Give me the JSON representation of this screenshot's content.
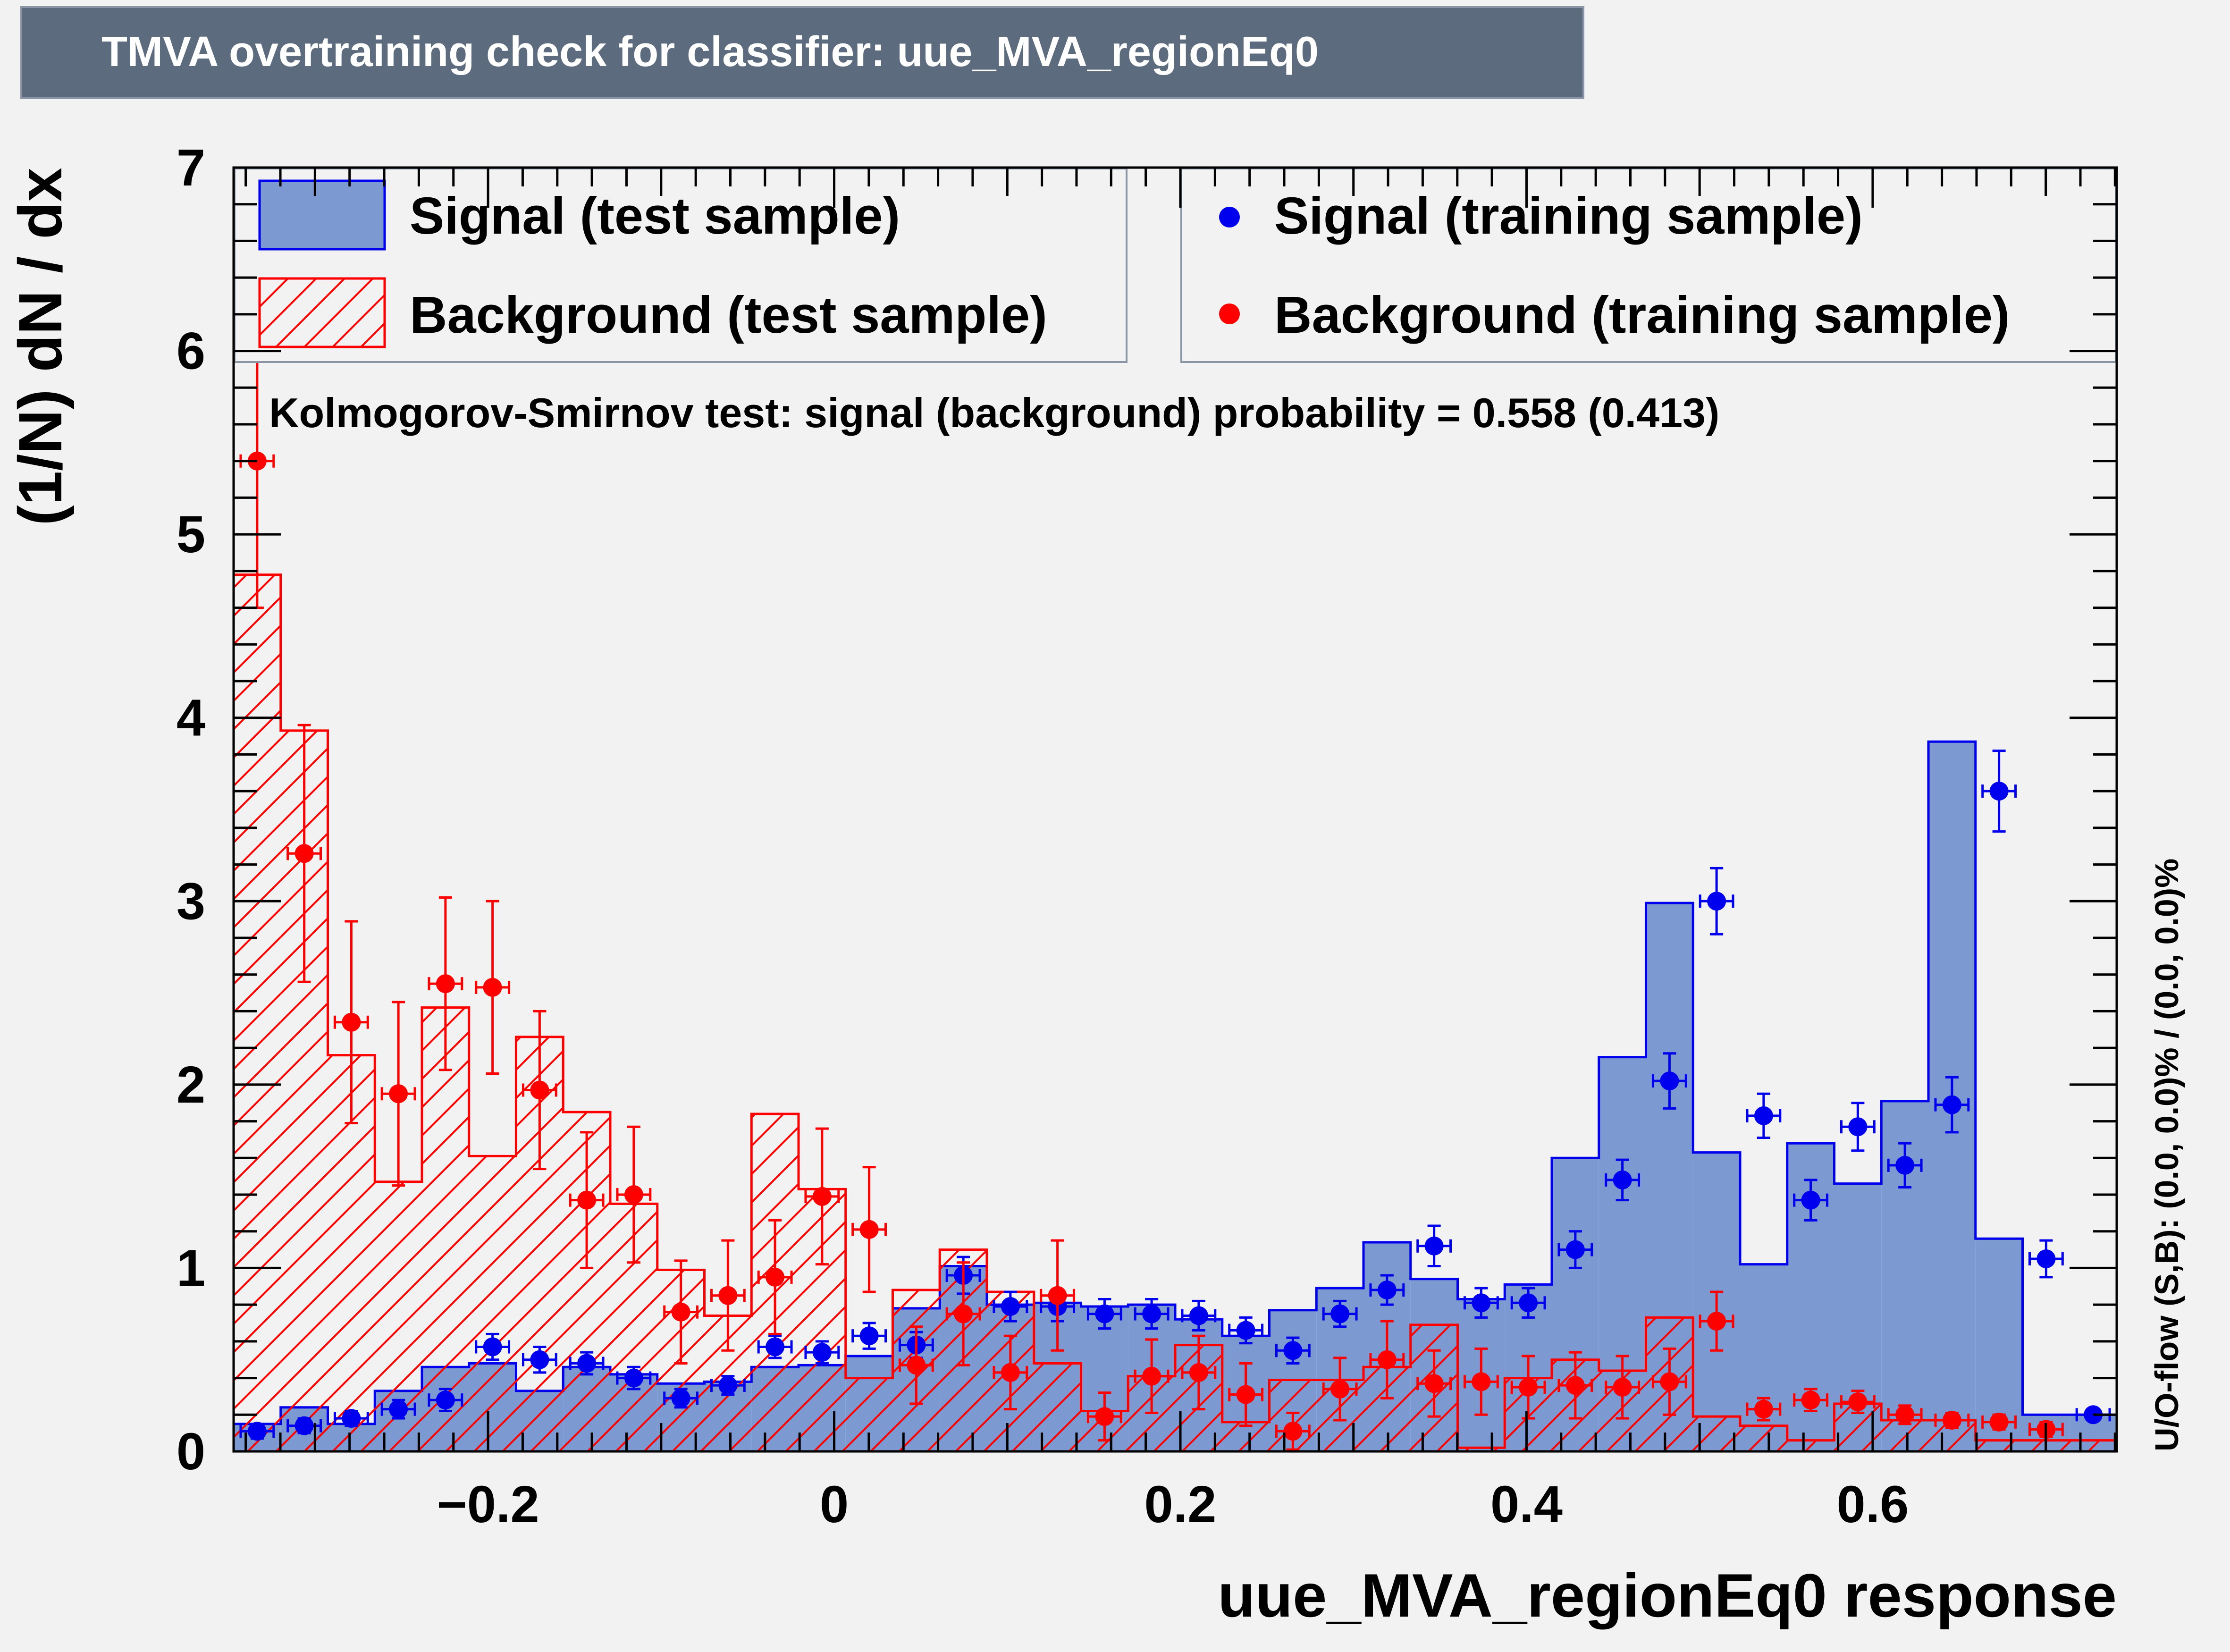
{
  "title": "TMVA overtraining check for classifier: uue_MVA_regionEq0",
  "colors": {
    "signal_fill": "#7d99d1",
    "signal_line": "#0000ee",
    "signal_marker": "#0000ee",
    "background_line": "#ff0000",
    "background_marker": "#ff0000",
    "title_bg": "#5c6b7d",
    "canvas_bg": "#f2f2f2"
  },
  "legend": {
    "signal_test": "Signal (test sample)",
    "background_test": "Background (test sample)",
    "signal_train": "Signal (training sample)",
    "background_train": "Background (training sample)"
  },
  "ks_text": "Kolmogorov-Smirnov test: signal (background) probability = 0.558 (0.413)",
  "uo_flow_text": "U/O-flow (S,B): (0.0, 0.0)% / (0.0, 0.0)%",
  "chart_data": {
    "type": "bar",
    "title": "TMVA overtraining check for classifier: uue_MVA_regionEq0",
    "xlabel": "uue_MVA_regionEq0 response",
    "ylabel": "(1/N) dN / dx",
    "xlim": [
      -0.347,
      0.741
    ],
    "ylim": [
      0,
      7
    ],
    "x_ticks": [
      {
        "v": -0.2,
        "label": "−0.2"
      },
      {
        "v": 0,
        "label": "0"
      },
      {
        "v": 0.2,
        "label": "0.2"
      },
      {
        "v": 0.4,
        "label": "0.4"
      },
      {
        "v": 0.6,
        "label": "0.6"
      }
    ],
    "y_ticks": [
      0,
      1,
      2,
      3,
      4,
      5,
      6,
      7
    ],
    "bins": 40,
    "series": [
      {
        "name": "Signal (test sample)",
        "style": "filled-histogram",
        "values": [
          0.15,
          0.24,
          0.15,
          0.33,
          0.46,
          0.48,
          0.33,
          0.46,
          0.42,
          0.37,
          0.38,
          0.46,
          0.47,
          0.52,
          0.78,
          1.01,
          0.8,
          0.81,
          0.79,
          0.8,
          0.72,
          0.63,
          0.77,
          0.89,
          1.14,
          0.94,
          0.83,
          0.91,
          1.6,
          2.15,
          2.99,
          1.63,
          1.02,
          1.68,
          1.46,
          1.91,
          3.87,
          1.16,
          0.2,
          0.2
        ]
      },
      {
        "name": "Background (test sample)",
        "style": "hatched-histogram",
        "values": [
          4.78,
          3.93,
          2.16,
          1.47,
          2.42,
          1.61,
          2.26,
          1.85,
          1.35,
          0.99,
          0.74,
          1.84,
          1.43,
          0.4,
          0.88,
          1.1,
          0.87,
          0.48,
          0.22,
          0.41,
          0.58,
          0.16,
          0.39,
          0.39,
          0.46,
          0.69,
          0.02,
          0.4,
          0.5,
          0.44,
          0.73,
          0.19,
          0.14,
          0.06,
          0.26,
          0.17,
          0.17,
          0.06,
          0.06,
          0.06
        ]
      },
      {
        "name": "Signal (training sample)",
        "style": "points",
        "values": [
          0.11,
          0.14,
          0.18,
          0.23,
          0.28,
          0.57,
          0.5,
          0.48,
          0.4,
          0.29,
          0.36,
          0.57,
          0.54,
          0.63,
          0.58,
          0.96,
          0.79,
          0.79,
          0.75,
          0.75,
          0.74,
          0.66,
          0.55,
          0.75,
          0.88,
          1.12,
          0.81,
          0.81,
          1.1,
          1.48,
          2.02,
          3.0,
          1.83,
          1.37,
          1.77,
          1.56,
          1.89,
          3.6,
          1.05,
          0.2
        ],
        "errors": [
          0.04,
          0.04,
          0.04,
          0.05,
          0.06,
          0.07,
          0.07,
          0.06,
          0.06,
          0.05,
          0.05,
          0.06,
          0.06,
          0.07,
          0.07,
          0.1,
          0.08,
          0.08,
          0.08,
          0.08,
          0.08,
          0.07,
          0.07,
          0.07,
          0.08,
          0.11,
          0.08,
          0.08,
          0.1,
          0.11,
          0.15,
          0.18,
          0.12,
          0.11,
          0.13,
          0.12,
          0.15,
          0.22,
          0.1,
          0.03
        ]
      },
      {
        "name": "Background (training sample)",
        "style": "points",
        "values": [
          5.4,
          3.26,
          2.34,
          1.95,
          2.55,
          2.53,
          1.97,
          1.37,
          1.4,
          0.76,
          0.85,
          0.95,
          1.39,
          1.21,
          0.47,
          0.75,
          0.43,
          0.85,
          0.19,
          0.41,
          0.43,
          0.31,
          0.11,
          0.34,
          0.5,
          0.37,
          0.38,
          0.35,
          0.36,
          0.35,
          0.38,
          0.71,
          0.23,
          0.28,
          0.27,
          0.2,
          0.17,
          0.16,
          0.12,
          0.0
        ],
        "errors": [
          0.8,
          0.7,
          0.55,
          0.5,
          0.47,
          0.47,
          0.43,
          0.37,
          0.37,
          0.28,
          0.3,
          0.31,
          0.37,
          0.34,
          0.21,
          0.28,
          0.2,
          0.3,
          0.13,
          0.2,
          0.2,
          0.17,
          0.1,
          0.17,
          0.21,
          0.18,
          0.18,
          0.17,
          0.18,
          0.17,
          0.18,
          0.16,
          0.06,
          0.06,
          0.06,
          0.05,
          0.04,
          0.04,
          0.04,
          0.0
        ]
      }
    ],
    "grid": false,
    "legend_position": "top"
  }
}
